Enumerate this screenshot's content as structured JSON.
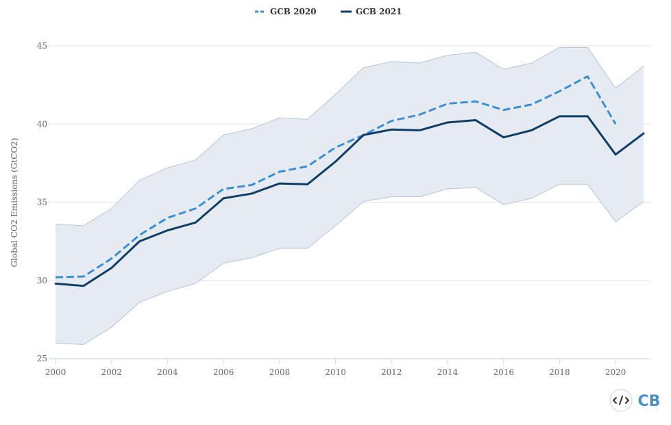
{
  "chart_data": {
    "type": "line",
    "title": "",
    "xlabel": "",
    "ylabel": "Global CO2 Emissions (GtCO2)",
    "xlim": [
      2000,
      2021
    ],
    "ylim": [
      25,
      45
    ],
    "x_ticks": [
      "2000",
      "2002",
      "2004",
      "2006",
      "2008",
      "2010",
      "2012",
      "2014",
      "2016",
      "2018",
      "2020"
    ],
    "y_ticks": [
      "25",
      "30",
      "35",
      "40",
      "45"
    ],
    "grid": "horizontal",
    "legend_position": "top-center",
    "series": [
      {
        "name": "GCB 2020",
        "style": "dashed",
        "color": "#3a8fd1",
        "x": [
          2000,
          2001,
          2002,
          2003,
          2004,
          2005,
          2006,
          2007,
          2008,
          2009,
          2010,
          2011,
          2012,
          2013,
          2014,
          2015,
          2016,
          2017,
          2018,
          2019,
          2020
        ],
        "values": [
          30.2,
          30.25,
          31.4,
          32.9,
          34.0,
          34.6,
          35.85,
          36.1,
          36.95,
          37.3,
          38.5,
          39.3,
          40.2,
          40.6,
          41.3,
          41.45,
          40.9,
          41.25,
          42.1,
          43.05,
          40.0
        ]
      },
      {
        "name": "GCB 2021",
        "style": "solid",
        "color": "#0e3d66",
        "x": [
          2000,
          2001,
          2002,
          2003,
          2004,
          2005,
          2006,
          2007,
          2008,
          2009,
          2010,
          2011,
          2012,
          2013,
          2014,
          2015,
          2016,
          2017,
          2018,
          2019,
          2020,
          2021
        ],
        "values": [
          29.8,
          29.65,
          30.8,
          32.5,
          33.2,
          33.7,
          35.25,
          35.55,
          36.2,
          36.15,
          37.6,
          39.3,
          39.65,
          39.6,
          40.1,
          40.25,
          39.15,
          39.6,
          40.5,
          40.5,
          38.05,
          39.4
        ]
      }
    ],
    "uncertainty_band": {
      "color": "#e6ebf1",
      "x": [
        2000,
        2001,
        2002,
        2003,
        2004,
        2005,
        2006,
        2007,
        2008,
        2009,
        2010,
        2011,
        2012,
        2013,
        2014,
        2015,
        2016,
        2017,
        2018,
        2019,
        2020,
        2021
      ],
      "upper": [
        33.6,
        33.5,
        34.6,
        36.4,
        37.2,
        37.7,
        39.3,
        39.7,
        40.4,
        40.3,
        41.9,
        43.6,
        44.0,
        43.9,
        44.4,
        44.6,
        43.5,
        43.9,
        44.9,
        44.9,
        42.3,
        43.7
      ],
      "lower": [
        26.0,
        25.9,
        27.0,
        28.6,
        29.3,
        29.8,
        31.1,
        31.45,
        32.05,
        32.05,
        33.5,
        35.05,
        35.35,
        35.35,
        35.85,
        35.95,
        34.85,
        35.25,
        36.15,
        36.15,
        33.75,
        35.05
      ]
    }
  },
  "toolbar": {
    "embed_icon": "code-embed-icon",
    "logo_text": "CB",
    "logo_color": "#4a90c4"
  }
}
